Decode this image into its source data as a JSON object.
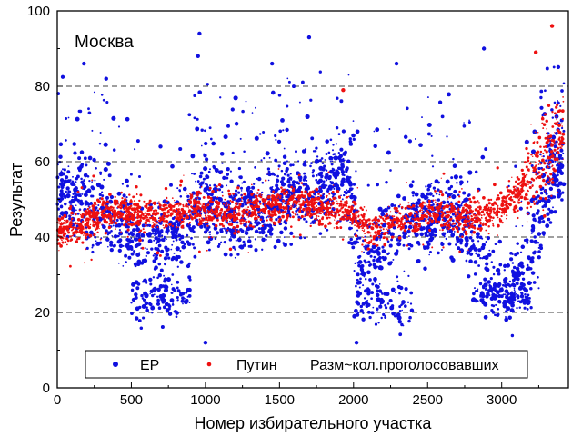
{
  "chart_data": {
    "type": "scatter",
    "title": "Москва",
    "xlabel": "Номер избирательного участка",
    "ylabel": "Результат",
    "xlim": [
      0,
      3450
    ],
    "ylim": [
      0,
      100
    ],
    "xticks": [
      0,
      500,
      1000,
      1500,
      2000,
      2500,
      3000
    ],
    "yticks": [
      0,
      20,
      40,
      60,
      80,
      100
    ],
    "grid_y": [
      20,
      40,
      60,
      80
    ],
    "legend_position": "bottom-center",
    "point_size_note": "Разм~кол.проголосовавших",
    "colors": {
      "ER": "#1010e0",
      "Putin": "#ee1010"
    },
    "series": [
      {
        "name": "ЕР",
        "color": "#1010e0",
        "trend": [
          {
            "x": 0,
            "y": 52
          },
          {
            "x": 200,
            "y": 50
          },
          {
            "x": 400,
            "y": 45
          },
          {
            "x": 600,
            "y": 38
          },
          {
            "x": 800,
            "y": 42
          },
          {
            "x": 1000,
            "y": 50
          },
          {
            "x": 1200,
            "y": 46
          },
          {
            "x": 1400,
            "y": 47
          },
          {
            "x": 1600,
            "y": 52
          },
          {
            "x": 1800,
            "y": 54
          },
          {
            "x": 1950,
            "y": 56
          },
          {
            "x": 2050,
            "y": 32
          },
          {
            "x": 2200,
            "y": 40
          },
          {
            "x": 2400,
            "y": 45
          },
          {
            "x": 2600,
            "y": 47
          },
          {
            "x": 2750,
            "y": 45
          },
          {
            "x": 2900,
            "y": 32
          },
          {
            "x": 3000,
            "y": 25
          },
          {
            "x": 3100,
            "y": 28
          },
          {
            "x": 3200,
            "y": 38
          },
          {
            "x": 3300,
            "y": 55
          },
          {
            "x": 3400,
            "y": 60
          }
        ]
      },
      {
        "name": "Путин",
        "color": "#ee1010",
        "trend": [
          {
            "x": 0,
            "y": 41
          },
          {
            "x": 200,
            "y": 44
          },
          {
            "x": 400,
            "y": 47
          },
          {
            "x": 600,
            "y": 46
          },
          {
            "x": 800,
            "y": 47
          },
          {
            "x": 1000,
            "y": 48
          },
          {
            "x": 1200,
            "y": 46
          },
          {
            "x": 1400,
            "y": 48
          },
          {
            "x": 1600,
            "y": 49
          },
          {
            "x": 1800,
            "y": 48
          },
          {
            "x": 2000,
            "y": 46
          },
          {
            "x": 2100,
            "y": 41
          },
          {
            "x": 2300,
            "y": 44
          },
          {
            "x": 2500,
            "y": 47
          },
          {
            "x": 2700,
            "y": 45
          },
          {
            "x": 2900,
            "y": 46
          },
          {
            "x": 3000,
            "y": 48
          },
          {
            "x": 3100,
            "y": 51
          },
          {
            "x": 3200,
            "y": 56
          },
          {
            "x": 3300,
            "y": 62
          },
          {
            "x": 3400,
            "y": 66
          }
        ]
      }
    ],
    "highlights": [
      {
        "series": "ЕР",
        "x": 960,
        "y": 94
      },
      {
        "series": "ЕР",
        "x": 1700,
        "y": 93
      },
      {
        "series": "ЕР",
        "x": 2880,
        "y": 90
      },
      {
        "series": "ЕР",
        "x": 950,
        "y": 88
      },
      {
        "series": "ЕР",
        "x": 1450,
        "y": 86
      },
      {
        "series": "ЕР",
        "x": 2290,
        "y": 86
      },
      {
        "series": "ЕР",
        "x": 180,
        "y": 86
      },
      {
        "series": "ЕР",
        "x": 330,
        "y": 82
      },
      {
        "series": "ЕР",
        "x": 1000,
        "y": 12
      },
      {
        "series": "ЕР",
        "x": 2020,
        "y": 12
      },
      {
        "series": "Путин",
        "x": 3340,
        "y": 96
      },
      {
        "series": "Путин",
        "x": 3230,
        "y": 89
      },
      {
        "series": "Путин",
        "x": 1930,
        "y": 79
      },
      {
        "series": "Путин",
        "x": 3180,
        "y": 49
      }
    ]
  },
  "legend": {
    "er_label": "ЕР",
    "putin_label": "Путин",
    "size_label": "Разм~кол.проголосовавших"
  }
}
